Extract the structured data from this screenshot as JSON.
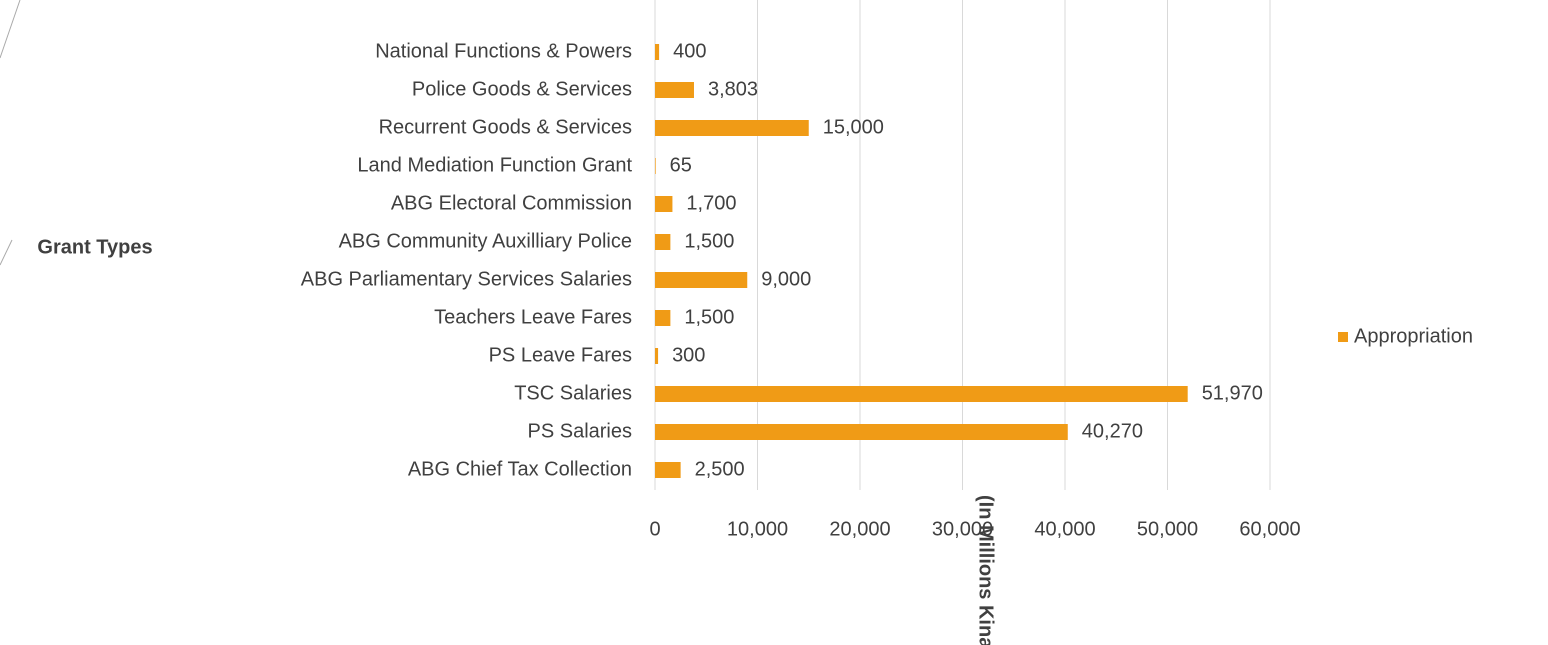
{
  "chart_data": {
    "type": "hbar",
    "y_axis_label": "Grant Types",
    "x_axis_label": "(In Millions Kina)",
    "categories": [
      "National Functions & Powers",
      "Police Goods & Services",
      "Recurrent Goods & Services",
      "Land Mediation Function Grant",
      "ABG Electoral Commission",
      "ABG Community Auxilliary Police",
      "ABG Parliamentary Services Salaries",
      "Teachers Leave Fares",
      "PS Leave Fares",
      "TSC Salaries",
      "PS Salaries",
      "ABG Chief Tax Collection"
    ],
    "series": [
      {
        "name": "Appropriation",
        "color": "#f09b16",
        "values": [
          400,
          3803,
          15000,
          65,
          1700,
          1500,
          9000,
          1500,
          300,
          51970,
          40270,
          2500
        ],
        "value_labels": [
          "400",
          "3,803",
          "15,000",
          "65",
          "1,700",
          "1,500",
          "9,000",
          "1,500",
          "300",
          "51,970",
          "40,270",
          "2,500"
        ]
      }
    ],
    "xlim": [
      0,
      60000
    ],
    "xticks": [
      0,
      {
        "value": 10000,
        "label": "10,000"
      },
      {
        "value": 20000,
        "label": "20,000"
      },
      {
        "value": 30000,
        "label": "30,000"
      },
      {
        "value": 40000,
        "label": "40,000"
      },
      {
        "value": 50000,
        "label": "50,000"
      },
      {
        "value": 60000,
        "label": "60,000"
      }
    ],
    "grid": true,
    "legend": "right"
  }
}
